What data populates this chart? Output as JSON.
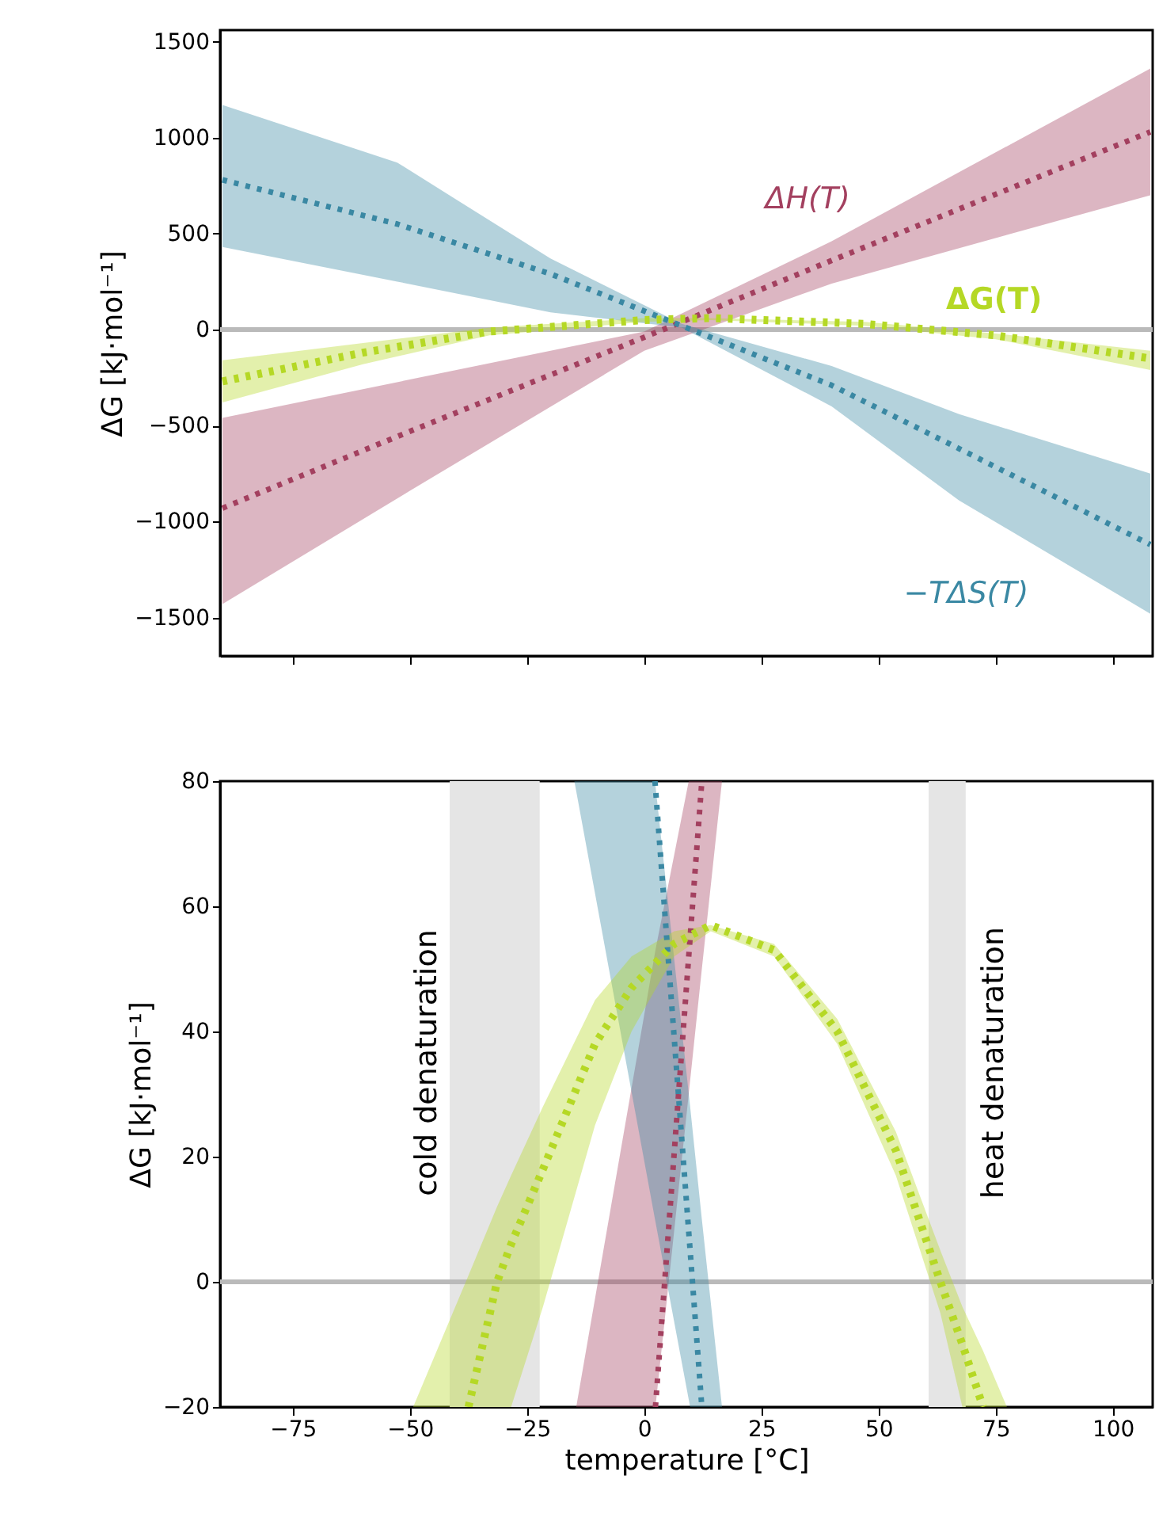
{
  "chart_data": [
    {
      "type": "line",
      "ylabel": "ΔG [kJ·mol⁻¹]",
      "xlim": [
        -90.5,
        108.5
      ],
      "ylim": [
        -1700,
        1560
      ],
      "xticks": [
        -75,
        -50,
        -25,
        0,
        25,
        50,
        75,
        100
      ],
      "yticks": [
        -1500,
        -1000,
        -500,
        0,
        500,
        1000,
        1500
      ],
      "tick_labels": "y",
      "grid": false,
      "marker": "none",
      "line_style": "dotted",
      "ref_lines": [
        {
          "axis": "y",
          "value": 0,
          "color": "#bababa"
        }
      ],
      "series": [
        {
          "name": "ΔH(T)",
          "color": "#a3405f",
          "x": [
            -90,
            -50,
            0,
            40,
            108
          ],
          "values": [
            -930,
            -530,
            -40,
            360,
            1030
          ],
          "lower": [
            -1430,
            -840,
            -110,
            240,
            700
          ],
          "upper": [
            -460,
            -260,
            -10,
            460,
            1360
          ]
        },
        {
          "name": "−TΔS(T)",
          "color": "#3a88a3",
          "x": [
            -90,
            -52.7,
            -20,
            8,
            40,
            67.2,
            108
          ],
          "values": [
            780,
            550,
            290,
            20,
            -290,
            -620,
            -1120
          ],
          "lower": [
            430,
            250,
            90,
            10,
            -400,
            -890,
            -1480
          ],
          "upper": [
            1170,
            870,
            370,
            30,
            -190,
            -440,
            -750
          ]
        },
        {
          "name": "ΔG(T)",
          "color": "#b5d825",
          "x": [
            -90,
            -60,
            -33,
            0,
            14,
            47,
            75,
            108
          ],
          "values": [
            -270,
            -120,
            -10,
            50,
            60,
            30,
            -30,
            -150
          ],
          "lower": [
            -380,
            -180,
            -30,
            40,
            50,
            20,
            -50,
            -210
          ],
          "upper": [
            -160,
            -70,
            10,
            60,
            60,
            40,
            -20,
            -110
          ]
        }
      ]
    },
    {
      "type": "line",
      "xlabel": "temperature [°C]",
      "ylabel": "ΔG [kJ·mol⁻¹]",
      "xlim": [
        -90.5,
        108.5
      ],
      "ylim": [
        -20,
        80
      ],
      "xticks": [
        -75,
        -50,
        -25,
        0,
        25,
        50,
        75,
        100
      ],
      "yticks": [
        -20,
        0,
        20,
        40,
        60,
        80
      ],
      "grid": false,
      "marker": "none",
      "line_style": "dotted",
      "ref_lines": [
        {
          "axis": "y",
          "value": 0,
          "color": "#bababa"
        }
      ],
      "bands": [
        {
          "axis": "x",
          "from": -41.5,
          "to": -22.3,
          "label": "cold denaturation",
          "color": "#e5e5e5"
        },
        {
          "axis": "x",
          "from": 60.7,
          "to": 68.6,
          "label": "heat denaturation",
          "color": "#e5e5e5"
        }
      ],
      "series": [
        {
          "color": "#a3405f",
          "x": [
            -14.5,
            2.4,
            9.5,
            12.3,
            16.6
          ],
          "values": [
            null,
            -20,
            52,
            80,
            null
          ],
          "lower": [
            -20,
            -20,
            30,
            50,
            80
          ],
          "upper": [
            -20,
            53,
            80,
            80,
            80
          ]
        },
        {
          "color": "#3a88a3",
          "x": [
            -14.9,
            2.3,
            9.8,
            12.3,
            16.6
          ],
          "values": [
            null,
            80,
            5,
            -20,
            null
          ],
          "lower": [
            80,
            10,
            -20,
            -20,
            -20
          ],
          "upper": [
            80,
            80,
            28,
            10,
            -20
          ]
        },
        {
          "color": "#b5d825",
          "x": [
            -49.3,
            -37.5,
            -31.4,
            -28.4,
            -21.6,
            -10.5,
            -2.7,
            6.4,
            14.2,
            27.7,
            41.2,
            53.7,
            63.2,
            67.9,
            72.3,
            77.4
          ],
          "values": [
            null,
            -20,
            0,
            6,
            18,
            38,
            47,
            54,
            57,
            53,
            40,
            21,
            0,
            -10,
            -20,
            null
          ],
          "lower": [
            -20,
            -20,
            -20,
            -20,
            -4,
            25,
            40,
            52,
            56,
            52,
            38,
            17,
            -5,
            -20,
            -20,
            -20
          ],
          "upper": [
            -20,
            1,
            12,
            17,
            28,
            45,
            52,
            56,
            57,
            54,
            42,
            24,
            5,
            -4,
            -11,
            -20
          ]
        }
      ]
    }
  ]
}
